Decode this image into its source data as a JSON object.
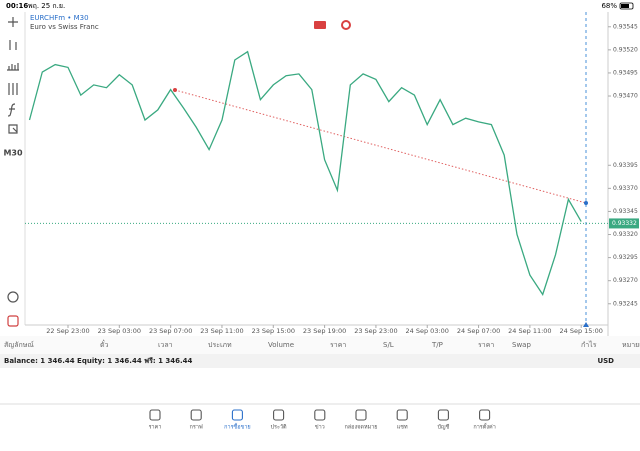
{
  "status_bar": {
    "time": "00:16",
    "date": "พฤ. 25 ก.ย.",
    "battery": "68%"
  },
  "toolbar": {
    "timeframe": "M30"
  },
  "chart_header": {
    "symbol": "EURCHFm • M30",
    "description": "Euro vs Swiss Franc"
  },
  "chart_data": {
    "type": "line",
    "categories": [
      null,
      null,
      null,
      "22 Sep 23:00",
      null,
      null,
      null,
      "23 Sep 03:00",
      null,
      null,
      null,
      "23 Sep 07:00",
      null,
      null,
      null,
      "23 Sep 11:00",
      null,
      null,
      null,
      "23 Sep 15:00",
      null,
      null,
      null,
      "23 Sep 19:00",
      null,
      null,
      null,
      "23 Sep 23:00",
      null,
      null,
      null,
      "24 Sep 03:00",
      null,
      null,
      null,
      "24 Sep 07:00",
      null,
      null,
      null,
      "24 Sep 11:00",
      null,
      null,
      null,
      "24 Sep 15:00"
    ],
    "values": [
      0.93444,
      0.93496,
      0.93504,
      0.93501,
      0.93471,
      0.93482,
      0.93479,
      0.93493,
      0.93482,
      0.93444,
      0.93455,
      0.93477,
      0.93457,
      0.93436,
      0.93412,
      0.93444,
      0.93509,
      0.93518,
      0.93466,
      0.93482,
      0.93492,
      0.93494,
      0.93477,
      0.93401,
      0.93368,
      0.93482,
      0.93494,
      0.93488,
      0.93464,
      0.93479,
      0.93471,
      0.93439,
      0.93466,
      0.93439,
      0.93446,
      0.93442,
      0.93439,
      0.93406,
      0.9332,
      0.93276,
      0.93255,
      0.93298,
      0.93358,
      0.93334
    ],
    "color": "#3aa981",
    "ylim": [
      0.93222,
      0.93561
    ],
    "yticks": [
      0.93545,
      {
        "value": 0.9352,
        "label": "0.93520"
      },
      0.93495,
      {
        "value": 0.9347,
        "label": "0.93470"
      },
      0.93395,
      {
        "value": 0.9337,
        "label": "0.93370"
      },
      0.93345,
      {
        "value": 0.9332,
        "label": "0.93320"
      },
      0.93295,
      {
        "value": 0.9327,
        "label": "0.93270"
      },
      0.93245
    ],
    "current_price": 0.93332
  },
  "positions_table": {
    "columns": [
      "สัญลักษณ์",
      "ตั๋ว",
      "เวลา",
      "ประเภท",
      "Volume",
      "ราคา",
      "S/L",
      "T/P",
      "ราคา",
      "Swap",
      "กำไร",
      "หมายเหตุ"
    ],
    "balance_line": "Balance: 1 346.44 Equity: 1 346.44 ฟรี: 1 346.44",
    "currency": "USD"
  },
  "bottom_nav": [
    "ราคา",
    "กราฟ",
    "การซื้อขาย",
    "ประวัติ",
    "ข่าว",
    "กล่องจดหมาย",
    "แชท",
    "บัญชี",
    "การตั้งค่า"
  ]
}
